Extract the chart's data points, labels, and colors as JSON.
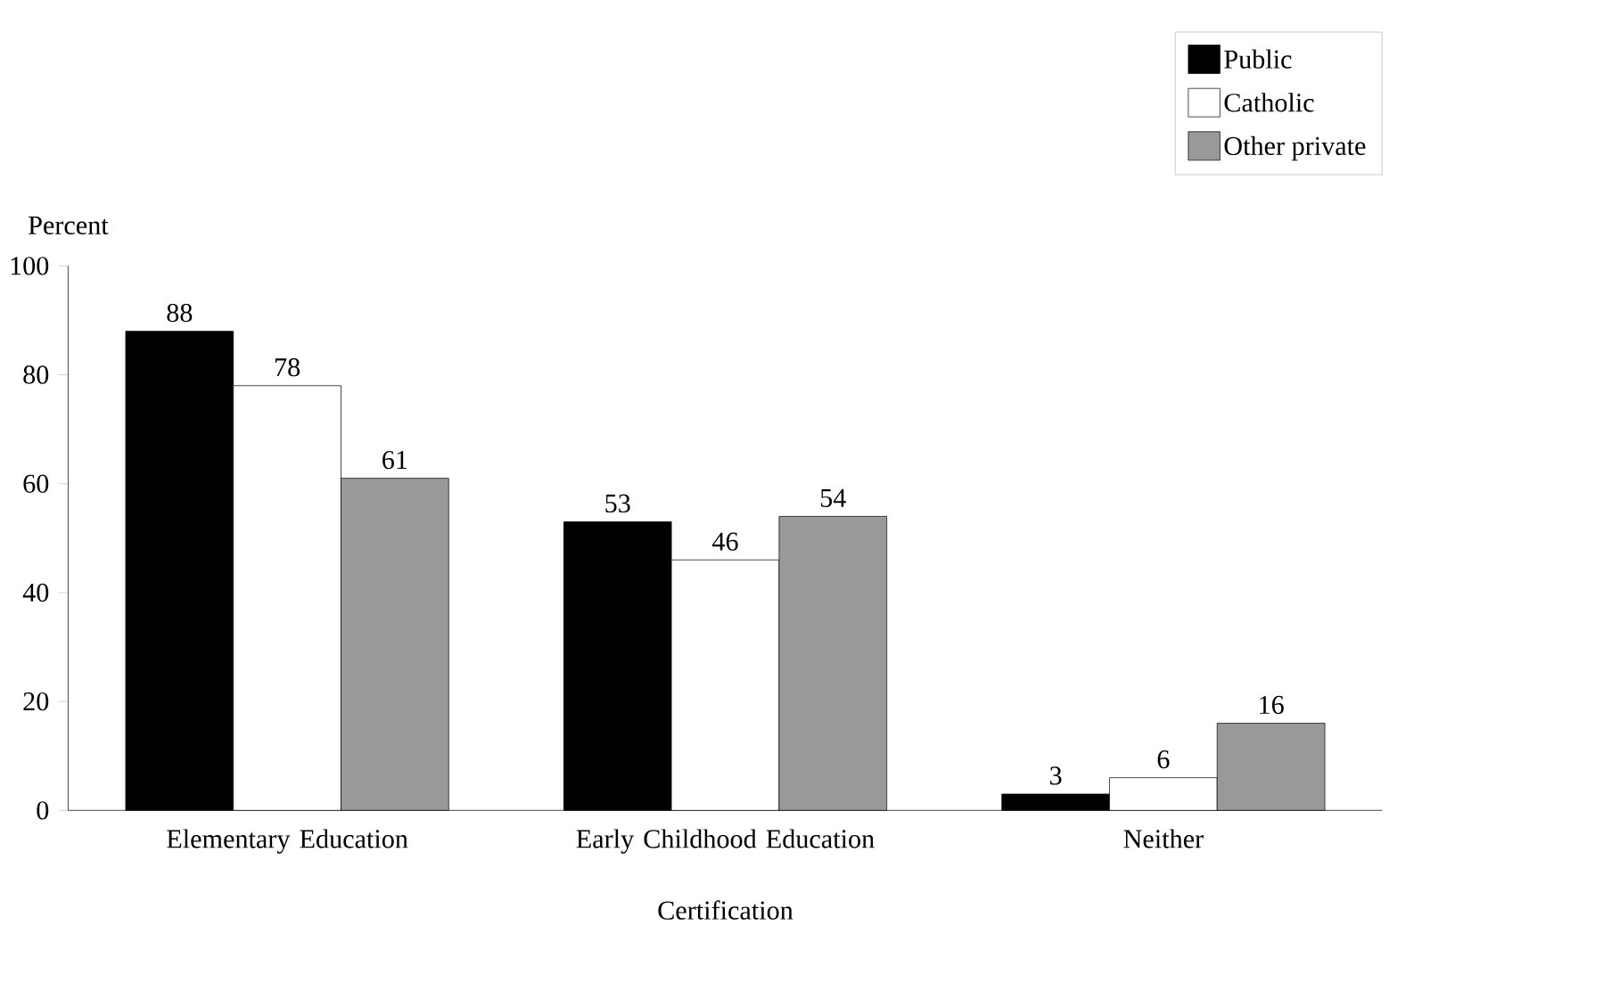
{
  "chart_data": {
    "type": "bar",
    "xlabel": "Certification",
    "ylabel": "Percent",
    "categories": [
      "Elementary Education",
      "Early Childhood Education",
      "Neither"
    ],
    "series": [
      {
        "name": "Public",
        "color": "#000000",
        "values": [
          88,
          53,
          3
        ]
      },
      {
        "name": "Catholic",
        "color": "#ffffff",
        "values": [
          78,
          46,
          6
        ]
      },
      {
        "name": "Other private",
        "color": "#999999",
        "values": [
          61,
          54,
          16
        ]
      }
    ],
    "ylim": [
      0,
      100
    ],
    "yticks": [
      0,
      20,
      40,
      60,
      80,
      100
    ],
    "data_labels": true,
    "legend": "top right",
    "grid": false
  }
}
